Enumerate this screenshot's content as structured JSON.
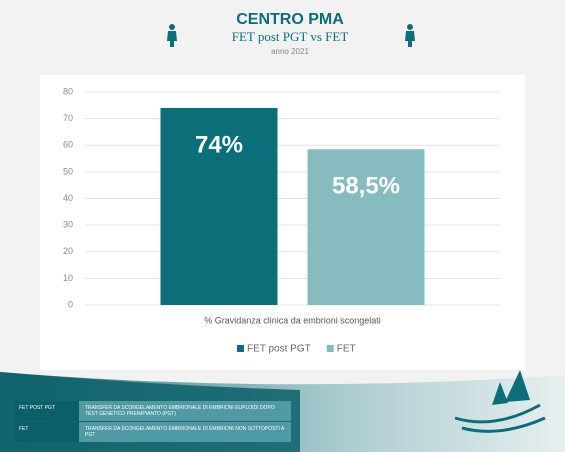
{
  "chart_data": {
    "type": "bar",
    "title": "CENTRO PMA",
    "subtitle": "FET post PGT vs FET",
    "note": "anno 2021",
    "categories": [
      "% Gravidanza clinica da embrioni scongelati"
    ],
    "series": [
      {
        "name": "FET post PGT",
        "color": "#0b6e79",
        "values": [
          74
        ],
        "value_labels": [
          "74%"
        ]
      },
      {
        "name": "FET",
        "color": "#86bcc0",
        "values": [
          58.5
        ],
        "value_labels": [
          "58,5%"
        ]
      }
    ],
    "ylim": [
      0,
      80
    ],
    "yticks": [
      0,
      10,
      20,
      30,
      40,
      50,
      60,
      70,
      80
    ],
    "grid": true,
    "legend": "bottom"
  },
  "table": {
    "rows": [
      [
        "FET POST PGT",
        "TRANSFER DA SCONGELAMENTO EMBRIONALE DI EMBRIONI EUPLOIDI DOPO TEST GENETICO PREIMPIANTO (PGT)"
      ],
      [
        "FET",
        "TRANSFER DA SCONGELAMENTO EMBRIONALE DI EMBRIONI NON SOTTOPOSTI A PGT"
      ]
    ]
  }
}
